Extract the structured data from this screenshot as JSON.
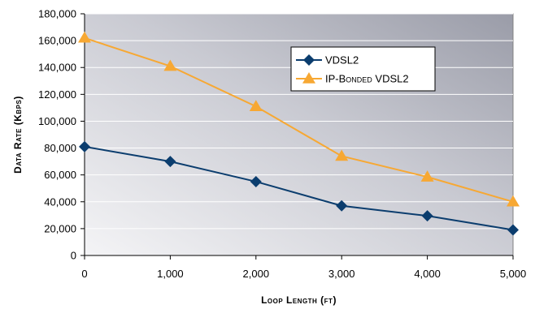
{
  "chart_data": {
    "type": "line",
    "x": [
      0,
      1000,
      2000,
      3000,
      4000,
      5000
    ],
    "x_tick_labels": [
      "0",
      "1,000",
      "2,000",
      "3,000",
      "4,000",
      "5,000"
    ],
    "xlim": [
      0,
      5000
    ],
    "ylim": [
      0,
      180000
    ],
    "y_ticks": [
      0,
      20000,
      40000,
      60000,
      80000,
      100000,
      120000,
      140000,
      160000,
      180000
    ],
    "y_tick_labels": [
      "0",
      "20,000",
      "40,000",
      "60,000",
      "80,000",
      "100,000",
      "120,000",
      "140,000",
      "160,000",
      "180,000"
    ],
    "xlabel": "Loop Length (ft)",
    "ylabel": "Data Rate (Kbps)",
    "grid": "horizontal",
    "legend_position": "top-right",
    "series": [
      {
        "name": "VDSL2",
        "color": "#0b3d6e",
        "marker": "diamond",
        "values": [
          81000,
          70000,
          55000,
          37000,
          29500,
          19000
        ]
      },
      {
        "name": "IP-Bonded VDSL2",
        "color": "#f7a833",
        "marker": "triangle",
        "values": [
          162000,
          141000,
          111000,
          74000,
          58500,
          40000
        ]
      }
    ]
  }
}
